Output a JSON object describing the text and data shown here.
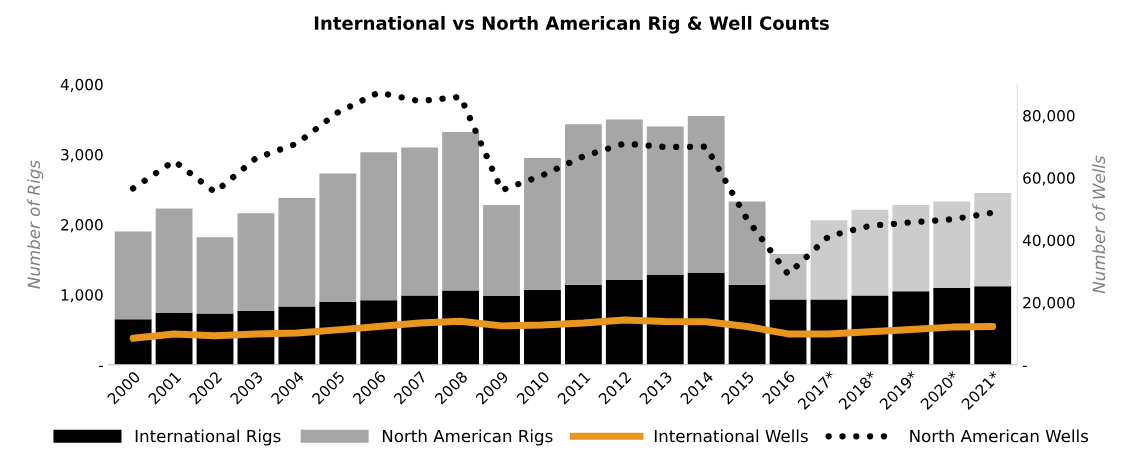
{
  "chart_data": {
    "type": "bar",
    "title": "International vs North American Rig & Well Counts",
    "categories": [
      "2000",
      "2001",
      "2002",
      "2003",
      "2004",
      "2005",
      "2006",
      "2007",
      "2008",
      "2009",
      "2010",
      "2011",
      "2012",
      "2013",
      "2014",
      "2015",
      "2016",
      "2017*",
      "2018*",
      "2019*",
      "2020*",
      "2021*"
    ],
    "stacked": true,
    "ylabel": "Number of Rigs",
    "y2label": "Number of Wells",
    "ylim": [
      0,
      4000
    ],
    "yticks": [
      {
        "value": 0,
        "label": "-"
      },
      {
        "value": 1000,
        "label": "1,000"
      },
      {
        "value": 2000,
        "label": "2,000"
      },
      {
        "value": 3000,
        "label": "3,000"
      },
      {
        "value": 4000,
        "label": "4,000"
      }
    ],
    "y2lim": [
      0,
      90000
    ],
    "y2ticks": [
      {
        "value": 0,
        "label": "-"
      },
      {
        "value": 20000,
        "label": "20,000"
      },
      {
        "value": 40000,
        "label": "40,000"
      },
      {
        "value": 60000,
        "label": "60,000"
      },
      {
        "value": 80000,
        "label": "80,000"
      }
    ],
    "grid": false,
    "legend": "bottom",
    "series": [
      {
        "name": "International Rigs",
        "color": "#000000",
        "values": [
          650,
          740,
          730,
          770,
          830,
          900,
          920,
          990,
          1060,
          980,
          1070,
          1140,
          1210,
          1280,
          1310,
          1140,
          930,
          930,
          990,
          1050,
          1100,
          1120
        ]
      },
      {
        "name": "North American Rigs",
        "color": "#a6a6a6",
        "colors": [
          "#a6a6a6",
          "#a6a6a6",
          "#a6a6a6",
          "#a6a6a6",
          "#a6a6a6",
          "#a6a6a6",
          "#a6a6a6",
          "#a6a6a6",
          "#a6a6a6",
          "#a6a6a6",
          "#a6a6a6",
          "#a6a6a6",
          "#a6a6a6",
          "#a6a6a6",
          "#a6a6a6",
          "#a6a6a6",
          "#bfbfbf",
          "#cccccc",
          "#cccccc",
          "#cccccc",
          "#cccccc",
          "#cccccc"
        ],
        "values": [
          1250,
          1490,
          1090,
          1390,
          1550,
          1830,
          2110,
          2110,
          2260,
          1300,
          1880,
          2290,
          2290,
          2120,
          2240,
          1190,
          650,
          1130,
          1220,
          1230,
          1230,
          1330
        ]
      },
      {
        "name": "International Wells",
        "type": "line",
        "axis": "y2",
        "color": "#e8961e",
        "line_style": "solid",
        "values": [
          8500,
          9900,
          9300,
          9900,
          10200,
          11200,
          12300,
          13400,
          14000,
          12500,
          12800,
          13400,
          14400,
          13900,
          13800,
          12300,
          9900,
          9900,
          10600,
          11300,
          12100,
          12300
        ]
      },
      {
        "name": "North American Wells",
        "type": "line",
        "axis": "y2",
        "color": "#000000",
        "line_style": "dotted",
        "values": [
          56600,
          65400,
          55400,
          66300,
          71000,
          81000,
          87400,
          84600,
          86000,
          56000,
          60800,
          66900,
          71000,
          69900,
          70000,
          46700,
          29100,
          41300,
          44600,
          45700,
          46700,
          48800
        ]
      }
    ]
  }
}
